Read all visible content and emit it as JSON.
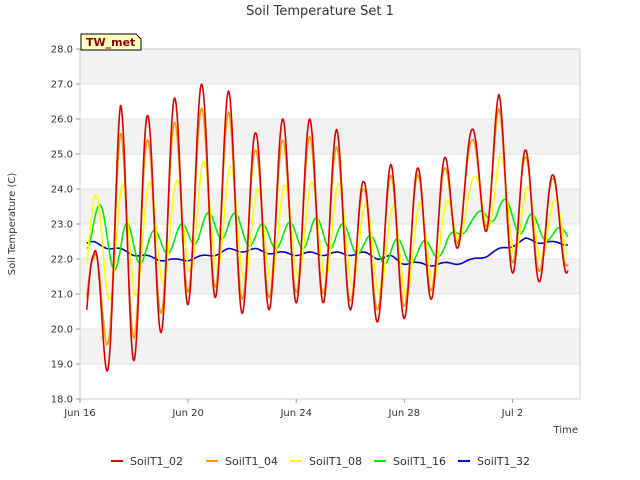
{
  "chart_data": {
    "type": "line",
    "title": "Soil Temperature Set 1",
    "xlabel": "Time",
    "ylabel": "Soil Temperature (C)",
    "station_tag": "TW_met",
    "xlim": [
      "Jun 16",
      "Jul 4 12:00"
    ],
    "ylim": [
      18.0,
      28.0
    ],
    "x_ticks": [
      "Jun 16",
      "Jun 20",
      "Jun 24",
      "Jun 28",
      "Jul 2"
    ],
    "y_ticks": [
      "18.0",
      "19.0",
      "20.0",
      "21.0",
      "22.0",
      "23.0",
      "24.0",
      "25.0",
      "26.0",
      "27.0",
      "28.0"
    ],
    "grid": "horizontal alternating bands",
    "legend_position": "bottom",
    "x_daily_noon": [
      "Jun 16",
      "Jun 17",
      "Jun 18",
      "Jun 19",
      "Jun 20",
      "Jun 21",
      "Jun 22",
      "Jun 23",
      "Jun 24",
      "Jun 25",
      "Jun 26",
      "Jun 27",
      "Jun 28",
      "Jun 29",
      "Jun 30",
      "Jul 1",
      "Jul 2",
      "Jul 3"
    ],
    "series": [
      {
        "name": "SoilT1_02",
        "color": "#dd0000",
        "daily_max": [
          22.1,
          26.4,
          26.1,
          26.6,
          27.0,
          26.8,
          25.6,
          26.0,
          26.0,
          25.7,
          24.2,
          24.7,
          24.6,
          24.9,
          25.7,
          26.7,
          25.1,
          24.4
        ],
        "daily_min": [
          19.0,
          18.6,
          19.6,
          20.2,
          21.2,
          20.6,
          20.3,
          20.8,
          20.7,
          20.8,
          20.3,
          20.1,
          20.5,
          21.2,
          23.5,
          22.1,
          21.1,
          21.6
        ]
      },
      {
        "name": "SoilT1_04",
        "color": "#ff9900",
        "daily_max": [
          22.0,
          25.6,
          25.4,
          25.9,
          26.3,
          26.2,
          25.1,
          25.4,
          25.5,
          25.2,
          24.0,
          24.4,
          24.4,
          24.6,
          25.4,
          26.3,
          24.9,
          24.3
        ],
        "daily_min": [
          19.8,
          19.3,
          20.2,
          20.7,
          21.4,
          21.0,
          20.7,
          21.1,
          21.0,
          21.0,
          20.6,
          20.5,
          20.8,
          21.4,
          23.6,
          22.3,
          21.5,
          21.8
        ]
      },
      {
        "name": "SoilT1_08",
        "color": "#ffff00",
        "daily_max": [
          23.8,
          24.1,
          24.2,
          24.2,
          24.8,
          24.7,
          24.0,
          24.1,
          24.2,
          24.2,
          23.6,
          23.5,
          23.6,
          23.6,
          24.3,
          25.0,
          24.1,
          23.7
        ],
        "daily_min": [
          21.2,
          20.6,
          21.2,
          21.4,
          21.8,
          21.6,
          21.2,
          21.5,
          21.5,
          21.4,
          21.2,
          20.8,
          21.0,
          21.6,
          23.3,
          22.6,
          21.8,
          22.1
        ]
      },
      {
        "name": "SoilT1_16",
        "color": "#00ee00",
        "daily_max": [
          23.7,
          23.1,
          22.8,
          22.9,
          23.3,
          23.4,
          23.0,
          23.0,
          23.2,
          23.1,
          22.7,
          22.6,
          22.5,
          22.6,
          23.2,
          23.8,
          23.4,
          22.9
        ],
        "daily_min": [
          22.3,
          21.5,
          22.0,
          22.2,
          22.5,
          22.6,
          22.3,
          22.3,
          22.3,
          22.3,
          22.1,
          21.8,
          21.9,
          22.1,
          23.0,
          23.1,
          22.6,
          22.5
        ]
      },
      {
        "name": "SoilT1_32",
        "color": "#0000cc",
        "daily_max": [
          22.5,
          22.3,
          22.1,
          22.0,
          22.1,
          22.3,
          22.3,
          22.2,
          22.2,
          22.2,
          22.2,
          22.1,
          21.9,
          21.9,
          22.0,
          22.3,
          22.6,
          22.5
        ],
        "daily_min": [
          22.4,
          22.2,
          22.0,
          21.9,
          22.0,
          22.2,
          22.2,
          22.1,
          22.1,
          22.1,
          22.1,
          21.9,
          21.8,
          21.8,
          21.9,
          22.2,
          22.5,
          22.4
        ]
      }
    ]
  }
}
